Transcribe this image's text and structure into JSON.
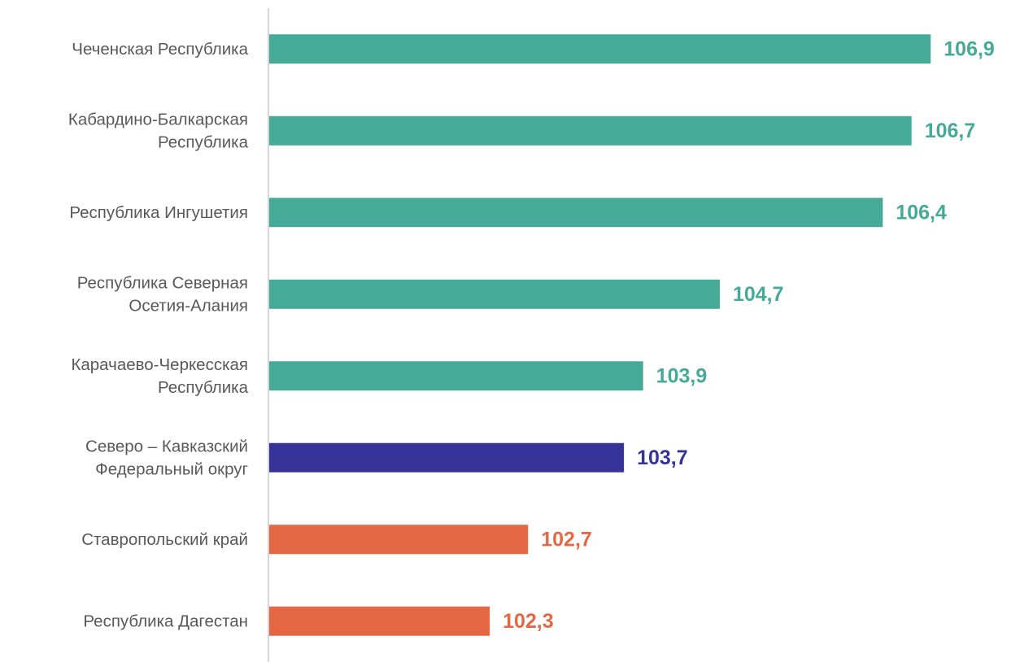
{
  "chart_data": {
    "type": "bar",
    "orientation": "horizontal",
    "categories": [
      [
        "Чеченская Республика"
      ],
      [
        "Кабардино-Балкарская",
        "Республика"
      ],
      [
        "Республика Ингушетия"
      ],
      [
        "Республика Северная",
        "Осетия-Алания"
      ],
      [
        "Карачаево-Черкесская",
        "Республика"
      ],
      [
        "Северо – Кавказский",
        "Федеральный округ"
      ],
      [
        "Ставропольский  край"
      ],
      [
        "Республика Дагестан"
      ]
    ],
    "values": [
      106.9,
      106.7,
      106.4,
      104.7,
      103.9,
      103.7,
      102.7,
      102.3
    ],
    "value_labels": [
      "106,9",
      "106,7",
      "106,4",
      "104,7",
      "103,9",
      "103,7",
      "102,7",
      "102,3"
    ],
    "bar_colors": [
      "#45AA97",
      "#45AA97",
      "#45AA97",
      "#45AA97",
      "#45AA97",
      "#35339A",
      "#E56845",
      "#E56845"
    ],
    "xlim": [
      100,
      107.5
    ],
    "grid": false,
    "legend": "none",
    "axis_color": "#BFBFBF"
  }
}
